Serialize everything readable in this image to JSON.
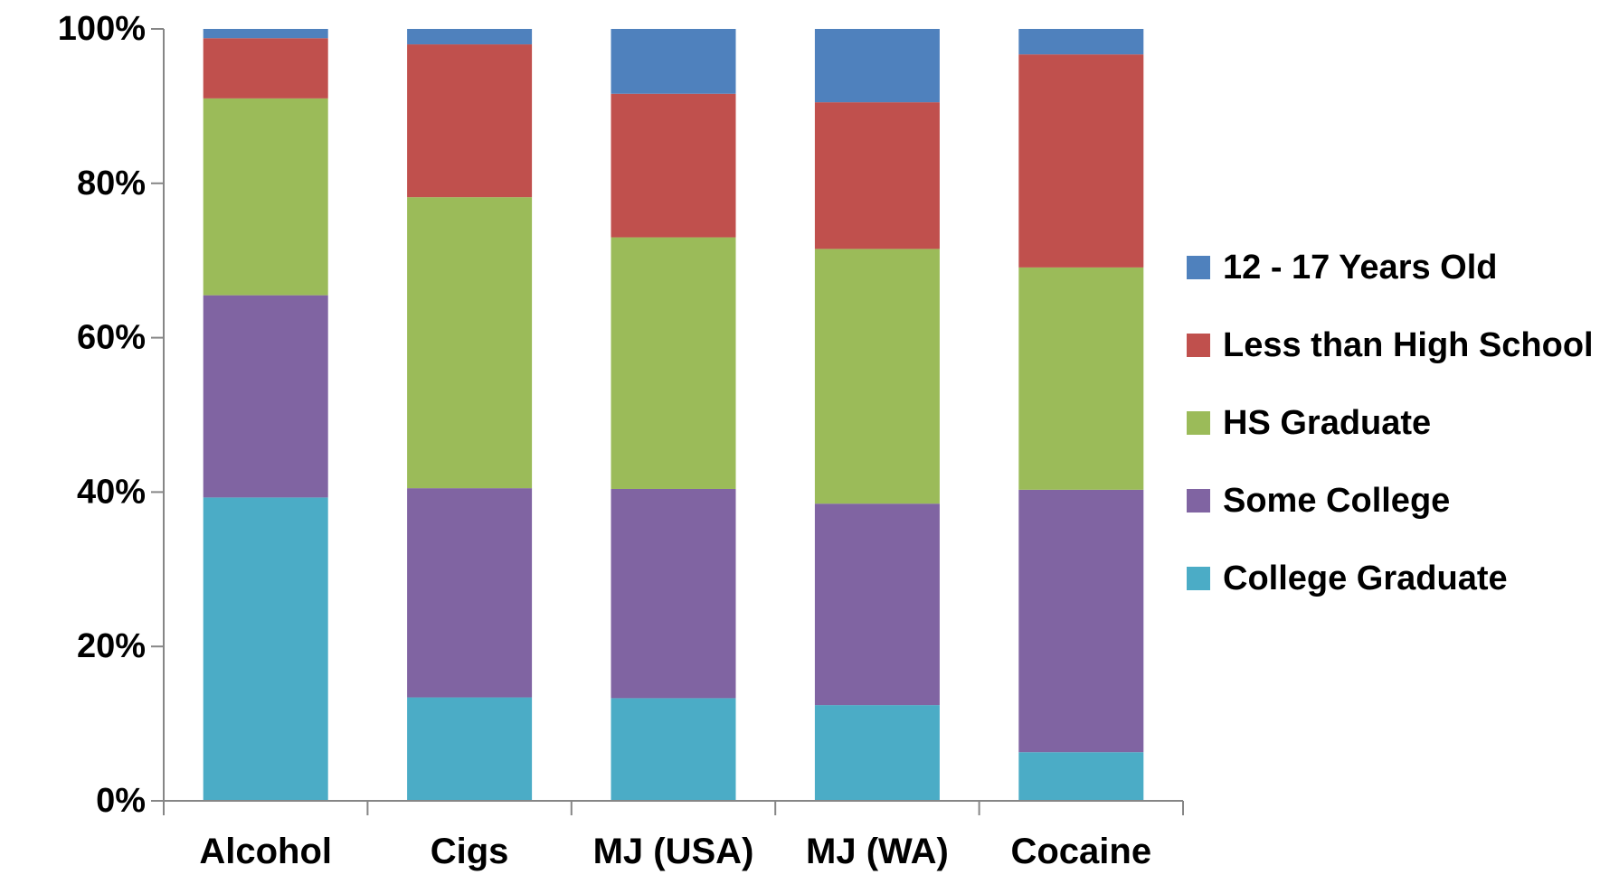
{
  "chart_data": {
    "type": "bar",
    "stacked": true,
    "categories": [
      "Alcohol",
      "Cigs",
      "MJ (USA)",
      "MJ (WA)",
      "Cocaine"
    ],
    "series": [
      {
        "name": "College Graduate",
        "color": "#4BACC6",
        "values": [
          39.3,
          13.4,
          13.3,
          12.4,
          6.3
        ]
      },
      {
        "name": "Some College",
        "color": "#8064A2",
        "values": [
          26.2,
          27.1,
          27.1,
          26.1,
          34.0
        ]
      },
      {
        "name": "HS Graduate",
        "color": "#9BBB59",
        "values": [
          25.5,
          37.7,
          32.6,
          33.0,
          28.8
        ]
      },
      {
        "name": "Less than High School",
        "color": "#C0504D",
        "values": [
          7.8,
          19.8,
          18.6,
          19.0,
          27.6
        ]
      },
      {
        "name": "12 - 17 Years Old",
        "color": "#4F81BD",
        "values": [
          1.2,
          2.0,
          8.4,
          9.5,
          3.3
        ]
      }
    ],
    "legend_order": [
      "12 - 17 Years Old",
      "Less than High School",
      "HS Graduate",
      "Some College",
      "College Graduate"
    ],
    "ylim": [
      0,
      100
    ],
    "yticks": [
      0,
      20,
      40,
      60,
      80,
      100
    ],
    "ytick_labels": [
      "0%",
      "20%",
      "40%",
      "60%",
      "80%",
      "100%"
    ],
    "legend_position": "right",
    "grid": false,
    "title": "",
    "xlabel": "",
    "ylabel": ""
  }
}
